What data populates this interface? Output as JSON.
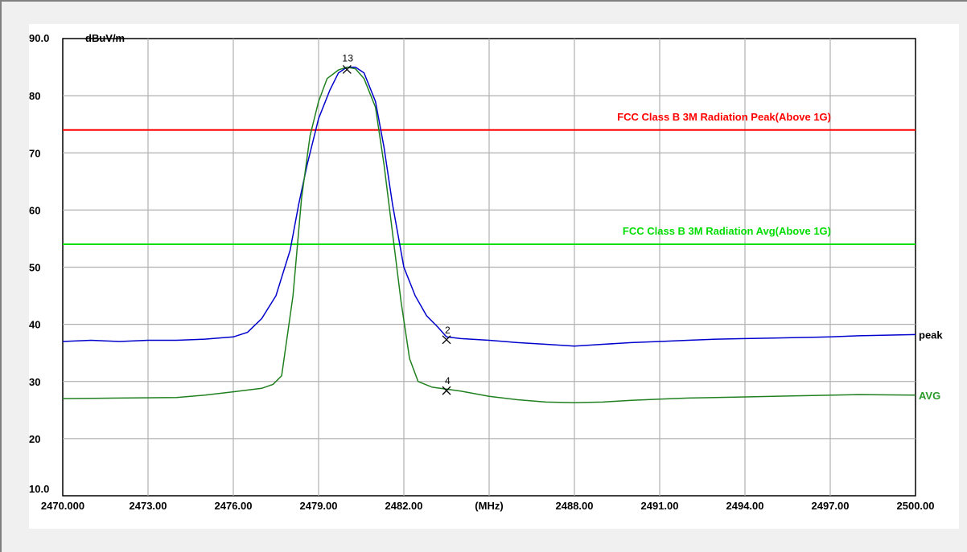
{
  "chart_data": {
    "type": "line",
    "ylabel": "dBuV/m",
    "xunit": "(MHz)",
    "xlim": [
      2470,
      2500
    ],
    "ylim": [
      10,
      90
    ],
    "x_tick_values": [
      2470,
      2473,
      2476,
      2479,
      2482,
      2485,
      2488,
      2491,
      2494,
      2497,
      2500
    ],
    "x_tick_labels": [
      "2470.000",
      "2473.00",
      "2476.00",
      "2479.00",
      "2482.00",
      "(MHz)",
      "2488.00",
      "2491.00",
      "2494.00",
      "2497.00",
      "2500.00"
    ],
    "y_tick_values": [
      10,
      20,
      30,
      40,
      50,
      60,
      70,
      80,
      90
    ],
    "y_tick_labels": [
      "10.0",
      "20",
      "30",
      "40",
      "50",
      "60",
      "70",
      "80",
      "90.0"
    ],
    "grid": true,
    "limit_lines": [
      {
        "label": "FCC Class B 3M Radiation Peak(Above 1G)",
        "value": 74,
        "color": "#ff0000"
      },
      {
        "label": "FCC Class B 3M Radiation Avg(Above 1G)",
        "value": 54,
        "color": "#00dd00"
      }
    ],
    "series": [
      {
        "name": "peak",
        "color": "#0000cc",
        "x": [
          2470,
          2471,
          2472,
          2473,
          2474,
          2475,
          2476,
          2476.5,
          2477,
          2477.5,
          2478,
          2478.3,
          2478.6,
          2479,
          2479.4,
          2479.7,
          2480,
          2480.3,
          2480.6,
          2481,
          2481.3,
          2481.6,
          2482,
          2482.4,
          2482.8,
          2483.2,
          2483.5,
          2484,
          2485,
          2486,
          2487,
          2488,
          2489,
          2490,
          2491,
          2492,
          2493,
          2494,
          2495,
          2496,
          2497,
          2498,
          2499,
          2500
        ],
        "y": [
          37,
          37.2,
          37,
          37.2,
          37.2,
          37.4,
          37.8,
          38.6,
          41,
          45,
          53,
          61,
          68,
          76,
          81,
          84,
          85,
          85,
          84,
          79,
          71,
          61,
          50,
          45,
          41.5,
          39.5,
          37.8,
          37.5,
          37.2,
          36.8,
          36.5,
          36.2,
          36.5,
          36.8,
          37,
          37.2,
          37.4,
          37.5,
          37.6,
          37.7,
          37.8,
          38,
          38.1,
          38.2
        ]
      },
      {
        "name": "AVG",
        "color": "#208020",
        "x": [
          2470,
          2472,
          2474,
          2475,
          2476,
          2477,
          2477.4,
          2477.7,
          2478.1,
          2478.4,
          2478.7,
          2479,
          2479.3,
          2479.7,
          2480,
          2480.3,
          2480.6,
          2481,
          2481.3,
          2481.6,
          2481.9,
          2482.2,
          2482.5,
          2483,
          2484,
          2485,
          2486,
          2487,
          2488,
          2489,
          2490,
          2491,
          2492,
          2494,
          2496,
          2498,
          2500
        ],
        "y": [
          27,
          27.1,
          27.2,
          27.6,
          28.2,
          28.8,
          29.5,
          31,
          45,
          62,
          73,
          79,
          83,
          84.5,
          85,
          84.7,
          83,
          78,
          68,
          56,
          44,
          34,
          30,
          29,
          28.3,
          27.4,
          26.8,
          26.4,
          26.3,
          26.4,
          26.7,
          26.9,
          27.1,
          27.3,
          27.5,
          27.7,
          27.6
        ]
      }
    ],
    "markers": [
      {
        "label": "1",
        "x": 2480.0,
        "y": 84.6
      },
      {
        "label": "3",
        "x": 2480.0,
        "y": 84.6
      },
      {
        "label": "2",
        "x": 2483.5,
        "y": 37.3
      },
      {
        "label": "4",
        "x": 2483.5,
        "y": 28.4
      }
    ]
  }
}
